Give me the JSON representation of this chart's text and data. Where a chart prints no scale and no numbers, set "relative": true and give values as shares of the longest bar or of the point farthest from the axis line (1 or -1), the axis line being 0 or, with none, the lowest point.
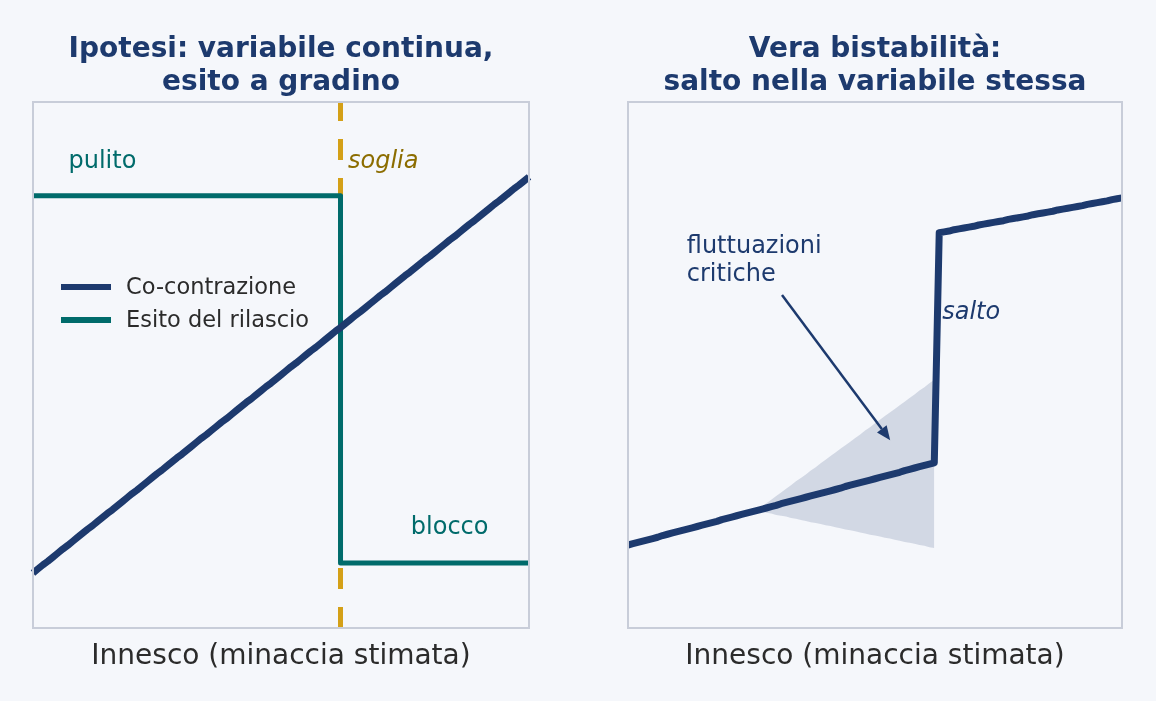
{
  "chart_data": [
    {
      "type": "line",
      "title": "Ipotesi: variabile continua,\nesito a gradino",
      "xlabel": "Innesco (minaccia stimata)",
      "relative": true,
      "tick_labels": false,
      "legend": "left",
      "categories": [
        null,
        null,
        null,
        null,
        null,
        null,
        null,
        null,
        null,
        null,
        null,
        null,
        null,
        null,
        null,
        null,
        null,
        null,
        null,
        null,
        null,
        null,
        null,
        null,
        null,
        null,
        null,
        null,
        null,
        null,
        null,
        null,
        null,
        null,
        null,
        null,
        null,
        null,
        null,
        null,
        null,
        null,
        null,
        null,
        null,
        null,
        null,
        null,
        null,
        null,
        null,
        null,
        null,
        null,
        null,
        null,
        null,
        null,
        null,
        null,
        null,
        null,
        null,
        null,
        null,
        null,
        null,
        null,
        null,
        null,
        null,
        null,
        null,
        null,
        null,
        null,
        null,
        null,
        null,
        null,
        null,
        null,
        null,
        null,
        null,
        null,
        null,
        null,
        null,
        null,
        null,
        null,
        null,
        null,
        null,
        null,
        null,
        null,
        null,
        null,
        null
      ],
      "series": [
        {
          "name": "Co-contrazione",
          "color": "#1d3a6e",
          "values": [
            0.122,
            0.131,
            0.14,
            0.148,
            0.157,
            0.166,
            0.175,
            0.183,
            0.192,
            0.201,
            0.21,
            0.219,
            0.227,
            0.236,
            0.245,
            0.254,
            0.262,
            0.271,
            0.28,
            0.289,
            0.298,
            0.306,
            0.315,
            0.324,
            0.333,
            0.342,
            0.35,
            0.359,
            0.368,
            0.377,
            0.385,
            0.394,
            0.403,
            0.412,
            0.421,
            0.429,
            0.438,
            0.447,
            0.456,
            0.464,
            0.473,
            0.482,
            0.491,
            0.5,
            0.508,
            0.517,
            0.526,
            0.535,
            0.543,
            0.552,
            0.561,
            0.57,
            0.579,
            0.587,
            0.596,
            0.605,
            0.614,
            0.622,
            0.631,
            0.64,
            0.649,
            0.658,
            0.666,
            0.675,
            0.684,
            0.693,
            0.701,
            0.71,
            0.719,
            0.728,
            0.737,
            0.745,
            0.754,
            0.763,
            0.772,
            0.781,
            0.789,
            0.798,
            0.807,
            0.816,
            0.824,
            0.833,
            0.842,
            0.851,
            0.86,
            0.868,
            0.877,
            0.886,
            0.895,
            0.903,
            0.912,
            0.921,
            0.93,
            0.939,
            0.947,
            0.956,
            0.965,
            0.974,
            0.982,
            0.991,
            1
          ]
        },
        {
          "name": "Esito del rilascio",
          "type": "step",
          "color": "#006b6b",
          "values": [
            0.958,
            0.958,
            0.958,
            0.958,
            0.958,
            0.958,
            0.958,
            0.958,
            0.958,
            0.958,
            0.958,
            0.958,
            0.958,
            0.958,
            0.958,
            0.958,
            0.958,
            0.958,
            0.958,
            0.958,
            0.958,
            0.958,
            0.958,
            0.958,
            0.958,
            0.958,
            0.958,
            0.958,
            0.958,
            0.958,
            0.958,
            0.958,
            0.958,
            0.958,
            0.958,
            0.958,
            0.958,
            0.958,
            0.958,
            0.958,
            0.958,
            0.958,
            0.958,
            0.958,
            0.958,
            0.958,
            0.958,
            0.958,
            0.958,
            0.958,
            0.958,
            0.958,
            0.958,
            0.958,
            0.958,
            0.958,
            0.958,
            0.958,
            0.958,
            0.958,
            0.958,
            0.958,
            0.144,
            0.144,
            0.144,
            0.144,
            0.144,
            0.144,
            0.144,
            0.144,
            0.144,
            0.144,
            0.144,
            0.144,
            0.144,
            0.144,
            0.144,
            0.144,
            0.144,
            0.144,
            0.144,
            0.144,
            0.144,
            0.144,
            0.144,
            0.144,
            0.144,
            0.144,
            0.144,
            0.144,
            0.144,
            0.144,
            0.144,
            0.144,
            0.144,
            0.144,
            0.144,
            0.144,
            0.144,
            0.144,
            0.144
          ]
        }
      ],
      "annotations": [
        "pulito",
        "soglia",
        "blocco"
      ]
    },
    {
      "type": "line",
      "title": "Vera bistabilità:\nsalto nella variabile stessa",
      "xlabel": "Innesco (minaccia stimata)",
      "relative": true,
      "tick_labels": false,
      "categories": [
        null,
        null,
        null,
        null,
        null,
        null,
        null,
        null,
        null,
        null,
        null,
        null,
        null,
        null,
        null,
        null,
        null,
        null,
        null,
        null,
        null,
        null,
        null,
        null,
        null,
        null,
        null,
        null,
        null,
        null,
        null,
        null,
        null,
        null,
        null,
        null,
        null,
        null,
        null,
        null,
        null,
        null,
        null,
        null,
        null,
        null,
        null,
        null,
        null,
        null,
        null,
        null,
        null,
        null,
        null,
        null,
        null,
        null,
        null,
        null,
        null,
        null,
        null,
        null,
        null,
        null,
        null,
        null,
        null,
        null,
        null,
        null,
        null,
        null,
        null,
        null,
        null,
        null,
        null,
        null,
        null,
        null,
        null,
        null,
        null,
        null,
        null,
        null,
        null,
        null,
        null,
        null,
        null,
        null,
        null,
        null,
        null,
        null,
        null,
        null,
        null
      ],
      "series": [
        {
          "color": "#1d3a6e",
          "values": [
            0.193,
            0.196,
            0.199,
            0.202,
            0.205,
            0.208,
            0.211,
            0.215,
            0.218,
            0.221,
            0.224,
            0.227,
            0.23,
            0.233,
            0.236,
            0.239,
            0.242,
            0.245,
            0.248,
            0.252,
            0.255,
            0.258,
            0.261,
            0.264,
            0.267,
            0.27,
            0.273,
            0.276,
            0.279,
            0.282,
            0.285,
            0.289,
            0.292,
            0.295,
            0.298,
            0.301,
            0.304,
            0.307,
            0.31,
            0.313,
            0.316,
            0.319,
            0.322,
            0.325,
            0.329,
            0.332,
            0.335,
            0.338,
            0.341,
            0.344,
            0.347,
            0.35,
            0.353,
            0.356,
            0.359,
            0.362,
            0.366,
            0.369,
            0.372,
            0.375,
            0.378,
            0.381,
            0.384,
            0.919,
            0.921,
            0.923,
            0.926,
            0.928,
            0.93,
            0.932,
            0.934,
            0.937,
            0.939,
            0.941,
            0.943,
            0.945,
            0.947,
            0.95,
            0.952,
            0.954,
            0.956,
            0.958,
            0.961,
            0.963,
            0.965,
            0.967,
            0.969,
            0.972,
            0.974,
            0.976,
            0.978,
            0.98,
            0.982,
            0.985,
            0.987,
            0.989,
            0.991,
            0.993,
            0.996,
            0.998,
            1
          ],
          "lower": [
            null,
            null,
            null,
            null,
            null,
            null,
            null,
            null,
            null,
            null,
            null,
            null,
            null,
            null,
            null,
            null,
            null,
            null,
            null,
            null,
            null,
            null,
            null,
            null,
            null,
            null,
            0.273,
            0.271,
            0.268,
            0.266,
            0.263,
            0.261,
            0.259,
            0.256,
            0.254,
            0.251,
            0.249,
            0.246,
            0.244,
            0.242,
            0.239,
            0.237,
            0.234,
            0.232,
            0.229,
            0.227,
            0.225,
            0.222,
            0.22,
            0.217,
            0.215,
            0.213,
            0.21,
            0.208,
            0.205,
            0.203,
            0.2,
            0.198,
            0.196,
            0.193,
            0.191,
            0.188,
            0.186,
            null,
            null,
            null,
            null,
            null,
            null,
            null,
            null,
            null,
            null,
            null,
            null,
            null,
            null,
            null,
            null,
            null,
            null,
            null,
            null,
            null,
            null,
            null,
            null,
            null,
            null,
            null,
            null,
            null,
            null,
            null,
            null,
            null,
            null,
            null,
            null,
            null,
            null
          ],
          "upper": [
            null,
            null,
            null,
            null,
            null,
            null,
            null,
            null,
            null,
            null,
            null,
            null,
            null,
            null,
            null,
            null,
            null,
            null,
            null,
            null,
            null,
            null,
            null,
            null,
            null,
            null,
            0.273,
            0.281,
            0.29,
            0.298,
            0.307,
            0.315,
            0.324,
            0.332,
            0.341,
            0.349,
            0.357,
            0.366,
            0.374,
            0.383,
            0.391,
            0.4,
            0.408,
            0.417,
            0.425,
            0.433,
            0.442,
            0.45,
            0.459,
            0.467,
            0.476,
            0.484,
            0.493,
            0.501,
            0.509,
            0.518,
            0.526,
            0.535,
            0.543,
            0.552,
            0.56,
            0.569,
            0.577,
            null,
            null,
            null,
            null,
            null,
            null,
            null,
            null,
            null,
            null,
            null,
            null,
            null,
            null,
            null,
            null,
            null,
            null,
            null,
            null,
            null,
            null,
            null,
            null,
            null,
            null,
            null,
            null,
            null,
            null,
            null,
            null,
            null,
            null,
            null,
            null,
            null,
            null
          ]
        }
      ],
      "annotations": [
        "fluttuazioni\ncritiche",
        "salto"
      ]
    }
  ]
}
